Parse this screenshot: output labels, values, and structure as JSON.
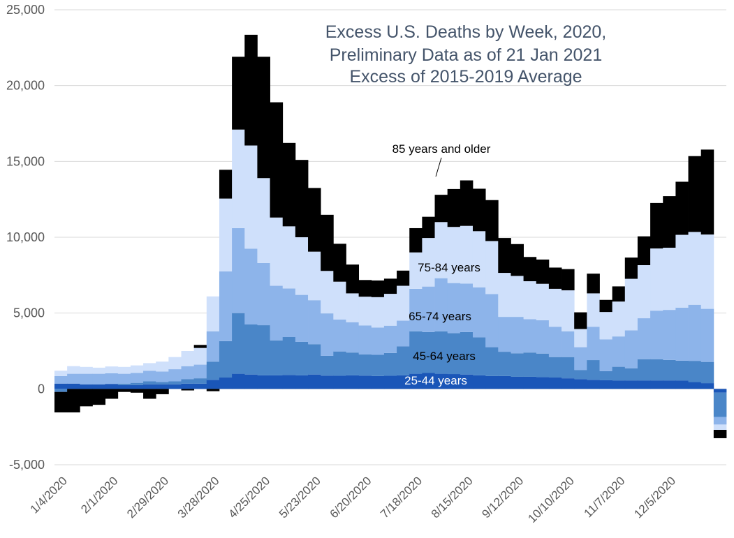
{
  "chart_data": {
    "type": "bar",
    "stacked": true,
    "title": [
      "Excess U.S. Deaths by Week, 2020,",
      "Preliminary Data as of 21 Jan 2021",
      "Excess of 2015-2019 Average"
    ],
    "xlabel": "",
    "ylabel": "",
    "ylim": [
      -5000,
      25000
    ],
    "yticks": [
      25000,
      20000,
      15000,
      10000,
      5000,
      0,
      -5000
    ],
    "ytick_labels": [
      "25,000",
      "20,000",
      "15,000",
      "10,000",
      "5,000",
      "0",
      "-5,000"
    ],
    "grid": true,
    "legend": "none",
    "x_tick_labels": [
      "1/4/2020",
      "2/1/2020",
      "2/29/2020",
      "3/28/2020",
      "4/25/2020",
      "5/23/2020",
      "6/20/2020",
      "7/18/2020",
      "8/15/2020",
      "9/12/2020",
      "10/10/2020",
      "11/7/2020",
      "12/5/2020"
    ],
    "x_tick_every": 4,
    "categories": [
      "1/4/2020",
      "1/11/2020",
      "1/18/2020",
      "1/25/2020",
      "2/1/2020",
      "2/8/2020",
      "2/15/2020",
      "2/22/2020",
      "2/29/2020",
      "3/7/2020",
      "3/14/2020",
      "3/21/2020",
      "3/28/2020",
      "4/4/2020",
      "4/11/2020",
      "4/18/2020",
      "4/25/2020",
      "5/2/2020",
      "5/9/2020",
      "5/16/2020",
      "5/23/2020",
      "5/30/2020",
      "6/6/2020",
      "6/13/2020",
      "6/20/2020",
      "6/27/2020",
      "7/4/2020",
      "7/11/2020",
      "7/18/2020",
      "7/25/2020",
      "8/1/2020",
      "8/8/2020",
      "8/15/2020",
      "8/22/2020",
      "8/29/2020",
      "9/5/2020",
      "9/12/2020",
      "9/19/2020",
      "9/26/2020",
      "10/3/2020",
      "10/10/2020",
      "10/17/2020",
      "10/24/2020",
      "10/31/2020",
      "11/7/2020",
      "11/14/2020",
      "11/21/2020",
      "11/28/2020",
      "12/5/2020",
      "12/12/2020",
      "12/19/2020",
      "12/26/2020",
      "1/2/2021"
    ],
    "series": [
      {
        "name": "25-44 years",
        "color": "#1a56b8",
        "values": [
          350,
          350,
          300,
          300,
          330,
          250,
          250,
          300,
          300,
          300,
          350,
          350,
          600,
          750,
          1000,
          950,
          900,
          900,
          920,
          900,
          950,
          880,
          870,
          900,
          880,
          850,
          870,
          900,
          1000,
          1050,
          1000,
          980,
          950,
          900,
          850,
          850,
          800,
          800,
          780,
          750,
          700,
          650,
          600,
          570,
          560,
          560,
          560,
          560,
          560,
          560,
          450,
          380,
          -250
        ]
      },
      {
        "name": "45-64 years",
        "color": "#4a86c8",
        "values": [
          -200,
          0,
          0,
          0,
          0,
          100,
          150,
          200,
          150,
          200,
          300,
          350,
          1200,
          2400,
          4000,
          3300,
          3300,
          2300,
          2500,
          2200,
          2000,
          1300,
          1600,
          1500,
          1400,
          1400,
          1500,
          1900,
          2800,
          2700,
          2800,
          2700,
          2800,
          2500,
          1900,
          1600,
          1550,
          1600,
          1550,
          1350,
          1400,
          600,
          1300,
          600,
          900,
          800,
          1400,
          1400,
          1350,
          1300,
          1400,
          1400,
          -1600
        ]
      },
      {
        "name": "65-74 years",
        "color": "#8db4ea",
        "values": [
          500,
          650,
          700,
          700,
          700,
          650,
          650,
          700,
          700,
          800,
          850,
          900,
          2000,
          4600,
          5600,
          5000,
          4100,
          3600,
          3200,
          3100,
          2900,
          2800,
          2100,
          2000,
          1900,
          1800,
          1800,
          1700,
          2800,
          3000,
          3500,
          3300,
          3200,
          3300,
          3500,
          2300,
          2400,
          2200,
          2200,
          2000,
          1700,
          1500,
          2200,
          2100,
          2000,
          2500,
          2700,
          3200,
          3300,
          3500,
          3700,
          3500,
          -500
        ]
      },
      {
        "name": "75-84 years",
        "color": "#cfe0fb",
        "values": [
          350,
          500,
          450,
          400,
          450,
          450,
          500,
          500,
          650,
          800,
          1000,
          1100,
          2300,
          4800,
          6500,
          6800,
          5600,
          4500,
          4100,
          3800,
          3200,
          2800,
          2500,
          1900,
          1900,
          2000,
          2100,
          2300,
          2400,
          3200,
          3700,
          3700,
          3800,
          3700,
          3500,
          2900,
          2700,
          2500,
          2400,
          2500,
          2700,
          1200,
          2200,
          1800,
          2300,
          3400,
          3500,
          4100,
          4100,
          4800,
          4800,
          4900,
          -350
        ]
      },
      {
        "name": "85 years and older",
        "color": "#000000",
        "values": [
          -1350,
          -1550,
          -1150,
          -1050,
          -650,
          -200,
          -250,
          -650,
          -350,
          0,
          -100,
          200,
          -150,
          1900,
          4800,
          7300,
          8000,
          7600,
          5500,
          5100,
          4200,
          3700,
          2500,
          1900,
          1100,
          1100,
          1000,
          1000,
          1600,
          1400,
          1800,
          2500,
          3000,
          2800,
          2700,
          2300,
          2100,
          1600,
          1600,
          1400,
          1400,
          1100,
          1300,
          800,
          1000,
          1400,
          1900,
          3000,
          3400,
          3500,
          5000,
          5600,
          -550
        ]
      }
    ],
    "annotations": [
      {
        "text": "85 years and older",
        "color": "#000000"
      },
      {
        "text": "75-84 years",
        "color": "#000000"
      },
      {
        "text": "65-74 years",
        "color": "#000000"
      },
      {
        "text": "45-64 years",
        "color": "#000000"
      },
      {
        "text": "25-44 years",
        "color": "#ffffff"
      }
    ]
  }
}
